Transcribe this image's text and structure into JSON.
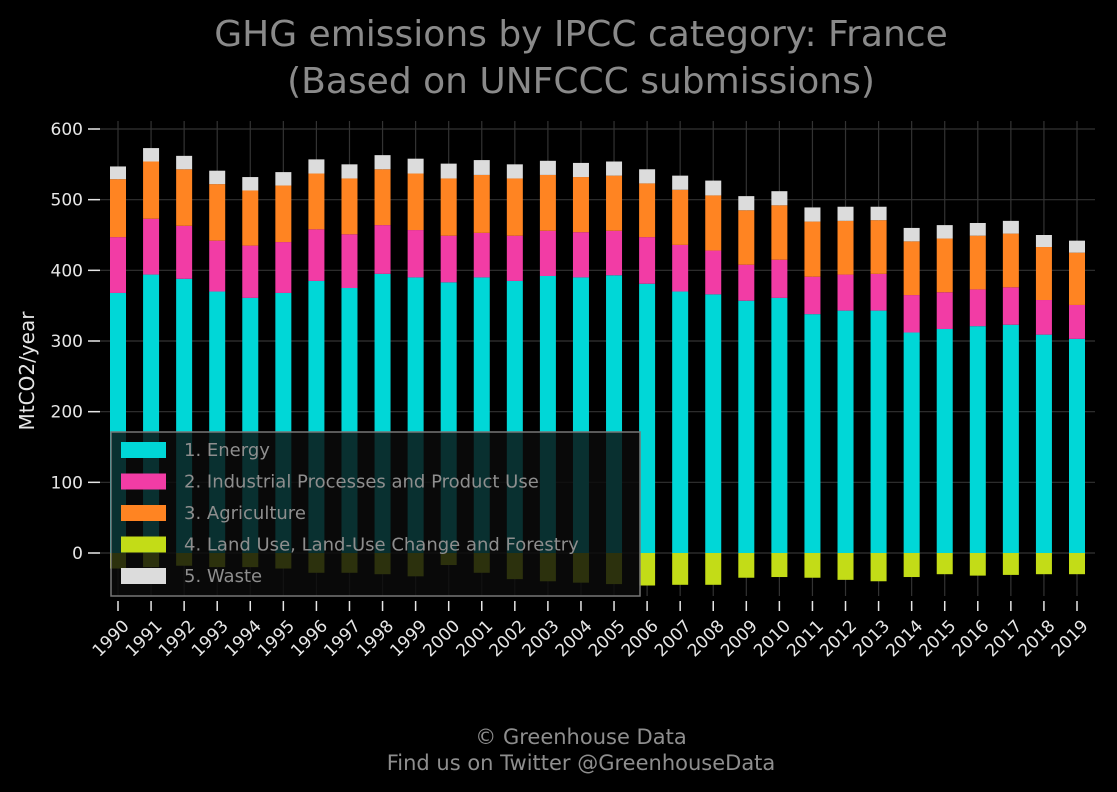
{
  "chart_data": {
    "type": "bar",
    "stacked": true,
    "title": "GHG emissions by IPCC category: France\n(Based on UNFCCC submissions)",
    "title_lines": [
      "GHG emissions by IPCC category: France",
      "(Based on UNFCCC submissions)"
    ],
    "ylabel": "MtCO2/year",
    "xlabel": "",
    "ylim": [
      -65,
      610
    ],
    "yticks": [
      0,
      100,
      200,
      300,
      400,
      500,
      600
    ],
    "grid": true,
    "legend_position": "lower-left",
    "categories": [
      "1990",
      "1991",
      "1992",
      "1993",
      "1994",
      "1995",
      "1996",
      "1997",
      "1998",
      "1999",
      "2000",
      "2001",
      "2002",
      "2003",
      "2004",
      "2005",
      "2006",
      "2007",
      "2008",
      "2009",
      "2010",
      "2011",
      "2012",
      "2013",
      "2014",
      "2015",
      "2016",
      "2017",
      "2018",
      "2019"
    ],
    "series": [
      {
        "name": "1. Energy",
        "color": "#00d7d7",
        "values": [
          368,
          394,
          388,
          370,
          361,
          368,
          385,
          375,
          395,
          390,
          383,
          390,
          385,
          392,
          390,
          393,
          381,
          370,
          366,
          357,
          361,
          338,
          343,
          343,
          312,
          317,
          321,
          323,
          309,
          303
        ]
      },
      {
        "name": "2. Industrial Processes and Product Use",
        "color": "#f23ca5",
        "values": [
          79,
          79,
          75,
          72,
          74,
          72,
          73,
          76,
          69,
          67,
          66,
          63,
          64,
          64,
          64,
          63,
          66,
          66,
          62,
          51,
          54,
          53,
          51,
          52,
          53,
          52,
          52,
          53,
          49,
          48
        ]
      },
      {
        "name": "3. Agriculture",
        "color": "#ff8422",
        "values": [
          82,
          81,
          80,
          80,
          78,
          80,
          79,
          79,
          79,
          80,
          81,
          82,
          81,
          79,
          78,
          78,
          76,
          78,
          78,
          77,
          77,
          78,
          76,
          76,
          76,
          76,
          76,
          76,
          75,
          74
        ]
      },
      {
        "name": "4. Land Use, Land-Use Change and Forestry",
        "color": "#c3dc17",
        "values": [
          -22,
          -20,
          -18,
          -20,
          -20,
          -22,
          -28,
          -28,
          -30,
          -33,
          -17,
          -28,
          -37,
          -40,
          -42,
          -44,
          -46,
          -45,
          -45,
          -35,
          -34,
          -35,
          -38,
          -40,
          -34,
          -30,
          -32,
          -31,
          -30,
          -30
        ]
      },
      {
        "name": "5. Waste",
        "color": "#dcdcdc",
        "values": [
          18,
          19,
          19,
          19,
          19,
          19,
          20,
          20,
          20,
          21,
          21,
          21,
          20,
          20,
          20,
          20,
          20,
          20,
          21,
          20,
          20,
          20,
          20,
          19,
          19,
          19,
          18,
          18,
          17,
          17
        ]
      }
    ]
  },
  "footer": {
    "line1": "© Greenhouse Data",
    "line2": "Find us on Twitter @GreenhouseData"
  },
  "colors": {
    "background": "#000000",
    "grid": "#333333",
    "text": "#e6e6e6",
    "title": "#8a8a8a",
    "legend_bg": "#0b0b0b",
    "legend_border": "#777777"
  }
}
